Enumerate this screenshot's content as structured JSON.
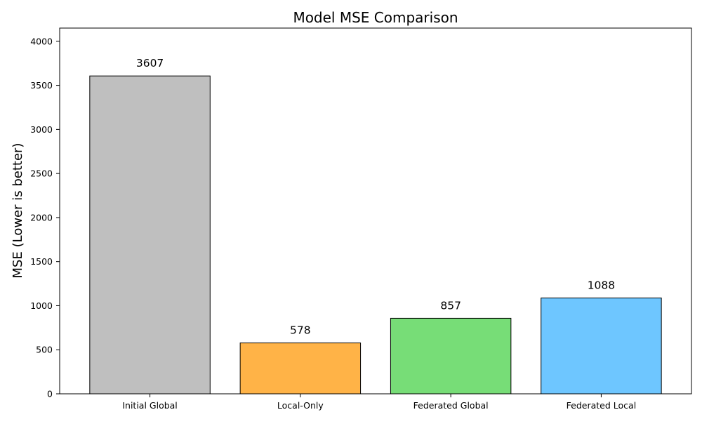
{
  "chart_data": {
    "type": "bar",
    "title": "Model MSE Comparison",
    "xlabel": "",
    "ylabel": "MSE (Lower is better)",
    "categories": [
      "Initial Global",
      "Local-Only",
      "Federated Global",
      "Federated Local"
    ],
    "values": [
      3607,
      578,
      857,
      1088
    ],
    "value_labels": [
      "3607",
      "578",
      "857",
      "1088"
    ],
    "colors": [
      "#bfbfbf",
      "#ffb347",
      "#77dd77",
      "#6ec6ff"
    ],
    "edge_color": "#000000",
    "ylim": [
      0,
      4150
    ],
    "yticks": [
      0,
      500,
      1000,
      1500,
      2000,
      2500,
      3000,
      3500,
      4000
    ],
    "ytick_labels": [
      "0",
      "500",
      "1000",
      "1500",
      "2000",
      "2500",
      "3000",
      "3500",
      "4000"
    ],
    "grid": false,
    "legend": "none"
  }
}
